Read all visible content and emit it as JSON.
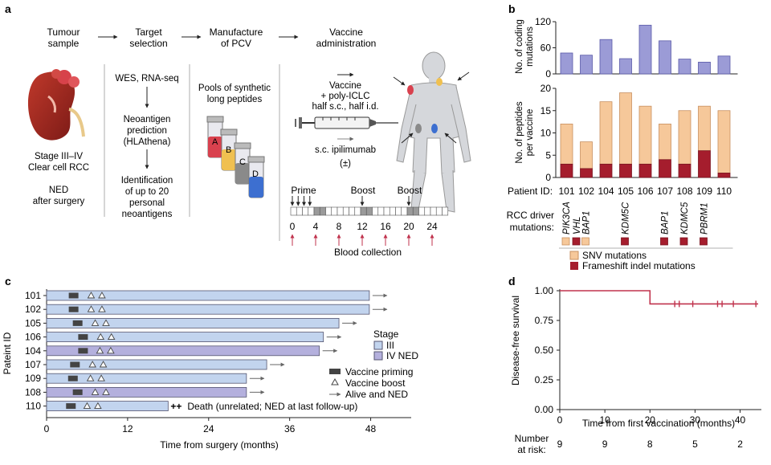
{
  "colors": {
    "purple": "#9b9bd6",
    "purple_stroke": "#5a5aa8",
    "salmon": "#f6c89a",
    "salmon_stroke": "#c89060",
    "darkred": "#a51d2d",
    "lightblue": "#c2d4ee",
    "lavender": "#b4b0dd",
    "bar_stroke": "#555570",
    "redline": "#c0334d",
    "arrowred": "#c0334d"
  },
  "panel_a": {
    "label": "a",
    "steps": [
      {
        "line1": "Tumour",
        "line2": "sample"
      },
      {
        "line1": "Target",
        "line2": "selection"
      },
      {
        "line1": "Manufacture",
        "line2": "of PCV"
      },
      {
        "line1": "Vaccine",
        "line2": "administration"
      }
    ],
    "tumour_text": [
      "Stage III–IV",
      "Clear cell RCC",
      "",
      "NED",
      "after surgery"
    ],
    "target_text": {
      "seq": "WES, RNA-seq",
      "neo": [
        "Neoantigen",
        "prediction",
        "(HLAthena)"
      ],
      "ident": [
        "Identification",
        "of up to 20",
        "personal",
        "neoantigens"
      ]
    },
    "pools_text": [
      "Pools of synthetic",
      "long peptides"
    ],
    "vial_letters": [
      "A",
      "B",
      "C",
      "D"
    ],
    "vaccine_text": [
      "Vaccine",
      "+ poly-ICLC",
      "half s.c., half i.d."
    ],
    "ipi_text": "s.c. ipilimumab",
    "ipi_pm": "(±)",
    "schedule": {
      "prime": "Prime",
      "boost": "Boost",
      "ticks": [
        "0",
        "4",
        "8",
        "12",
        "16",
        "20",
        "24"
      ],
      "blood": "Blood collection"
    }
  },
  "panel_b": {
    "label": "b",
    "top_ylabel": [
      "No. of coding",
      "mutations"
    ],
    "bottom_ylabel": [
      "No. of peptides",
      "per vaccine"
    ],
    "patient_id_label": "Patient ID:",
    "driver_label": [
      "RCC driver",
      "mutations:"
    ],
    "driver_genes": [
      "PIK3CA",
      "VHL",
      "BAP1",
      "KDM5C",
      "BAP1",
      "KDMC5",
      "PBRM1"
    ],
    "legend": [
      "SNV mutations",
      "Frameshift indel mutations"
    ]
  },
  "panel_c": {
    "label": "c",
    "ylabel": "Pateint ID",
    "xlabel": "Time from surgery (months)",
    "legend_stage_title": "Stage",
    "legend_stage": [
      "III",
      "IV NED"
    ],
    "legend_markers": [
      "Vaccine priming",
      "Vaccine boost",
      "Alive and NED"
    ],
    "death_label": "Death (unrelated; NED at last follow-up)",
    "death_symbol": "++"
  },
  "panel_d": {
    "label": "d",
    "ylabel": "Disease-free survival",
    "xlabel": "Time from first vaccination (months)",
    "at_risk_label": [
      "Number",
      "at risk:"
    ],
    "at_risk": [
      "9",
      "9",
      "8",
      "5",
      "2"
    ]
  },
  "chart_data": [
    {
      "id": "panel-b-top",
      "type": "bar",
      "title": "",
      "xlabel": "Patient ID",
      "ylabel": "No. of coding mutations",
      "categories": [
        "101",
        "102",
        "104",
        "105",
        "106",
        "107",
        "108",
        "109",
        "110"
      ],
      "values": [
        48,
        43,
        79,
        35,
        112,
        76,
        34,
        27,
        41
      ],
      "ylim": [
        0,
        120
      ],
      "yticks": [
        "0",
        "60",
        "120"
      ]
    },
    {
      "id": "panel-b-bottom",
      "type": "bar",
      "stacked": true,
      "title": "",
      "xlabel": "Patient ID",
      "ylabel": "No. of peptides per vaccine",
      "categories": [
        "101",
        "102",
        "104",
        "105",
        "106",
        "107",
        "108",
        "109",
        "110"
      ],
      "series": [
        {
          "name": "Frameshift indel mutations",
          "values": [
            3,
            2,
            3,
            3,
            3,
            4,
            3,
            6,
            1
          ]
        },
        {
          "name": "SNV mutations",
          "values": [
            9,
            6,
            14,
            16,
            13,
            8,
            12,
            10,
            14
          ]
        }
      ],
      "ylim": [
        0,
        20
      ],
      "yticks": [
        "0",
        "5",
        "10",
        "15",
        "20"
      ],
      "driver_mutations": [
        {
          "patient": "101",
          "gene": "PIK3CA",
          "kind": "SNV mutations"
        },
        {
          "patient": "101",
          "gene": "VHL",
          "kind": "Frameshift indel mutations"
        },
        {
          "patient": "102",
          "gene": "BAP1",
          "kind": "SNV mutations"
        },
        {
          "patient": "105",
          "gene": "KDM5C",
          "kind": "Frameshift indel mutations"
        },
        {
          "patient": "107",
          "gene": "BAP1",
          "kind": "Frameshift indel mutations"
        },
        {
          "patient": "108",
          "gene": "KDMC5",
          "kind": "Frameshift indel mutations"
        },
        {
          "patient": "109",
          "gene": "PBRM1",
          "kind": "Frameshift indel mutations"
        }
      ]
    },
    {
      "id": "panel-c",
      "type": "swimmer",
      "title": "",
      "xlabel": "Time from surgery (months)",
      "ylabel": "Pateint ID",
      "xlim": [
        0,
        54
      ],
      "xticks": [
        "0",
        "12",
        "24",
        "36",
        "48"
      ],
      "patients": [
        {
          "id": "101",
          "stage": "III",
          "end": 47.8,
          "prime": 4.0,
          "boosts": [
            6.6,
            8.2
          ],
          "status": "Alive and NED"
        },
        {
          "id": "102",
          "stage": "III",
          "end": 47.8,
          "prime": 4.0,
          "boosts": [
            6.6,
            8.2
          ],
          "status": "Alive and NED"
        },
        {
          "id": "105",
          "stage": "III",
          "end": 43.3,
          "prime": 4.6,
          "boosts": [
            7.2,
            8.8
          ],
          "status": "Alive and NED"
        },
        {
          "id": "106",
          "stage": "III",
          "end": 41.0,
          "prime": 5.4,
          "boosts": [
            8.0,
            9.6
          ],
          "status": "Alive and NED"
        },
        {
          "id": "104",
          "stage": "IV NED",
          "end": 40.4,
          "prime": 5.4,
          "boosts": [
            7.9,
            9.5
          ],
          "status": "Alive and NED"
        },
        {
          "id": "107",
          "stage": "III",
          "end": 32.6,
          "prime": 4.2,
          "boosts": [
            6.8,
            8.4
          ],
          "status": "Alive and NED"
        },
        {
          "id": "109",
          "stage": "III",
          "end": 29.6,
          "prime": 3.9,
          "boosts": [
            6.5,
            8.1
          ],
          "status": "Alive and NED"
        },
        {
          "id": "108",
          "stage": "IV NED",
          "end": 29.6,
          "prime": 4.6,
          "boosts": [
            7.2,
            8.8
          ],
          "status": "Alive and NED"
        },
        {
          "id": "110",
          "stage": "III",
          "end": 18.0,
          "prime": 3.6,
          "boosts": [
            6.0,
            7.6
          ],
          "status": "Death"
        }
      ]
    },
    {
      "id": "panel-d",
      "type": "line",
      "step": true,
      "title": "",
      "xlabel": "Time from first vaccination (months)",
      "ylabel": "Disease-free survival",
      "xlim": [
        0,
        44
      ],
      "ylim": [
        0.0,
        1.0
      ],
      "xticks": [
        "0",
        "10",
        "20",
        "30",
        "40"
      ],
      "yticks": [
        "0.00",
        "0.25",
        "0.50",
        "0.75",
        "1.00"
      ],
      "x": [
        0,
        20,
        20,
        44
      ],
      "y": [
        1.0,
        1.0,
        0.889,
        0.889
      ],
      "censored_x": [
        25.5,
        26.5,
        29.5,
        35.0,
        36.0,
        38.5,
        43.5
      ]
    }
  ]
}
